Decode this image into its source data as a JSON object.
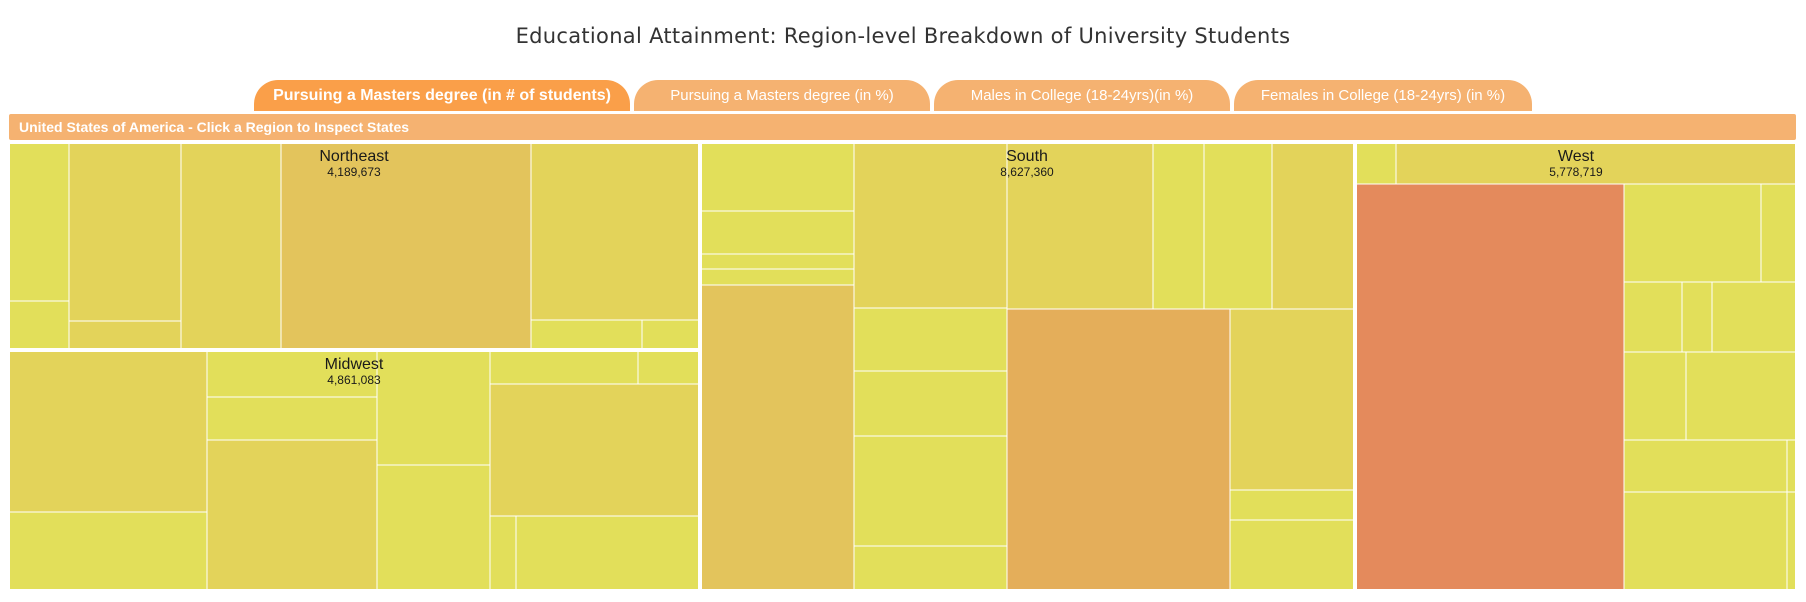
{
  "title": "Educational Attainment: Region-level Breakdown of University Students",
  "tabs": [
    {
      "label": "Pursuing a Masters degree (in # of students)",
      "active": true
    },
    {
      "label": "Pursuing a Masters degree (in %)",
      "active": false
    },
    {
      "label": "Males in College (18-24yrs)(in %)",
      "active": false
    },
    {
      "label": "Females in College (18-24yrs) (in %)",
      "active": false
    }
  ],
  "breadcrumb": "United States of America - Click a Region to Inspect States",
  "colors": {
    "tab_active": "#fa9f49",
    "tab_inactive": "#f5b271",
    "header_bar": "#f5b271",
    "tile_low": "#e2df5a",
    "tile_mid": "#e3c45c",
    "tile_high": "#e48a5c",
    "tile_border": "#ffffff"
  },
  "chart_data": {
    "type": "treemap",
    "title": "Educational Attainment: Region-level Breakdown of University Students",
    "regions": [
      {
        "name": "Northeast",
        "value": 4189673,
        "value_label": "4,189,673"
      },
      {
        "name": "Midwest",
        "value": 4861083,
        "value_label": "4,861,083"
      },
      {
        "name": "South",
        "value": 8627360,
        "value_label": "8,627,360"
      },
      {
        "name": "West",
        "value": 5778719,
        "value_label": "5,778,719"
      }
    ]
  }
}
